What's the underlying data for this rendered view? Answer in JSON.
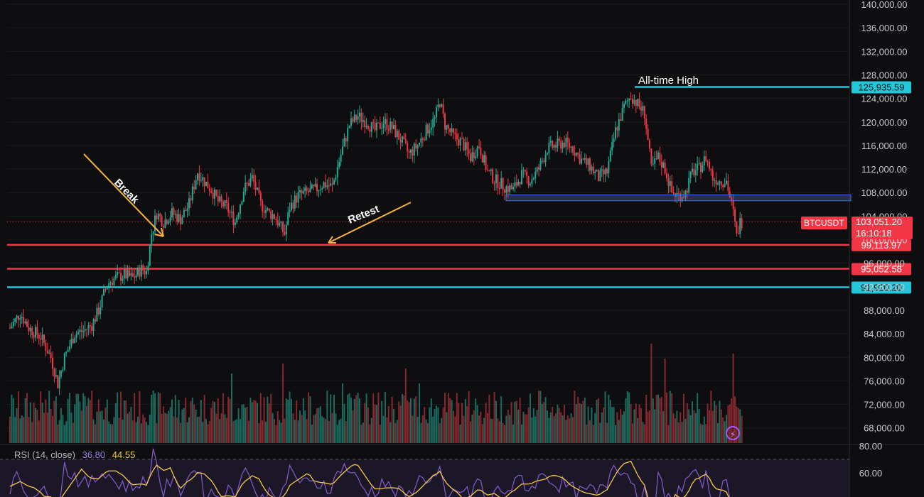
{
  "chart_data": {
    "type": "candlestick",
    "symbol": "BTCUSDT",
    "y_axis_ticks": [
      140000,
      136000,
      132000,
      128000,
      124000,
      120000,
      116000,
      112000,
      108000,
      104000,
      100000,
      96000,
      92000,
      88000,
      84000,
      80000,
      76000,
      72000,
      68000
    ],
    "y_axis_tick_labels": [
      "140,000.00",
      "136,000.00",
      "132,000.00",
      "128,000.00",
      "124,000.00",
      "120,000.00",
      "116,000.00",
      "112,000.00",
      "108,000.00",
      "104,000.00",
      "100,000.00",
      "96,000.00",
      "92,000.00",
      "88,000.00",
      "84,000.00",
      "80,000.00",
      "76,000.00",
      "72,000.00",
      "68,000.00"
    ],
    "ylim": [
      67000,
      141000
    ],
    "close_path": [
      [
        0,
        85000
      ],
      [
        6,
        87500
      ],
      [
        11,
        85000
      ],
      [
        18,
        83500
      ],
      [
        24,
        80000
      ],
      [
        28,
        75500
      ],
      [
        32,
        80000
      ],
      [
        38,
        84000
      ],
      [
        43,
        84500
      ],
      [
        48,
        85500
      ],
      [
        52,
        88000
      ],
      [
        57,
        92500
      ],
      [
        62,
        93500
      ],
      [
        67,
        94000
      ],
      [
        72,
        93500
      ],
      [
        77,
        95000
      ],
      [
        80,
        94500
      ],
      [
        83,
        101000
      ],
      [
        86,
        104500
      ],
      [
        90,
        103000
      ],
      [
        95,
        104500
      ],
      [
        100,
        103500
      ],
      [
        105,
        106000
      ],
      [
        110,
        111500
      ],
      [
        115,
        109500
      ],
      [
        118,
        108500
      ],
      [
        122,
        106500
      ],
      [
        127,
        105500
      ],
      [
        132,
        103000
      ],
      [
        137,
        108500
      ],
      [
        142,
        110500
      ],
      [
        147,
        106000
      ],
      [
        152,
        104500
      ],
      [
        155,
        104000
      ],
      [
        158,
        102500
      ],
      [
        161,
        101000
      ],
      [
        164,
        105500
      ],
      [
        169,
        107500
      ],
      [
        174,
        108000
      ],
      [
        179,
        108500
      ],
      [
        184,
        109500
      ],
      [
        189,
        109000
      ],
      [
        194,
        114500
      ],
      [
        199,
        119500
      ],
      [
        204,
        121000
      ],
      [
        209,
        120000
      ],
      [
        214,
        118500
      ],
      [
        219,
        120000
      ],
      [
        224,
        119000
      ],
      [
        229,
        117000
      ],
      [
        234,
        114500
      ],
      [
        239,
        116000
      ],
      [
        244,
        118500
      ],
      [
        249,
        120500
      ],
      [
        252,
        123500
      ],
      [
        255,
        119500
      ],
      [
        260,
        117500
      ],
      [
        265,
        116500
      ],
      [
        270,
        114000
      ],
      [
        275,
        116000
      ],
      [
        280,
        111500
      ],
      [
        285,
        110000
      ],
      [
        290,
        109000
      ],
      [
        295,
        108500
      ],
      [
        300,
        111000
      ],
      [
        305,
        110000
      ],
      [
        310,
        112000
      ],
      [
        315,
        115500
      ],
      [
        320,
        116000
      ],
      [
        325,
        116500
      ],
      [
        330,
        115500
      ],
      [
        335,
        113500
      ],
      [
        340,
        112500
      ],
      [
        345,
        110500
      ],
      [
        350,
        111500
      ],
      [
        355,
        118500
      ],
      [
        360,
        122500
      ],
      [
        364,
        124500
      ],
      [
        368,
        123000
      ],
      [
        372,
        121500
      ],
      [
        376,
        112000
      ],
      [
        380,
        114000
      ],
      [
        384,
        112000
      ],
      [
        388,
        108000
      ],
      [
        392,
        107500
      ],
      [
        396,
        108000
      ],
      [
        400,
        111500
      ],
      [
        404,
        112000
      ],
      [
        408,
        114000
      ],
      [
        412,
        110500
      ],
      [
        416,
        110000
      ],
      [
        420,
        110000
      ],
      [
        424,
        104500
      ],
      [
        426,
        100500
      ],
      [
        428,
        103000
      ]
    ],
    "annotations": {
      "all_time_high_label": "All-time High",
      "break_label": "Break",
      "retest_label": "Retest"
    },
    "levels": [
      {
        "value": 125935.59,
        "label": "125,935.59",
        "color": "#26c6da"
      },
      {
        "value": 99113.97,
        "label": "99,113.97",
        "color": "#f23645"
      },
      {
        "value": 95052.58,
        "label": "95,052.58",
        "color": "#f23645"
      },
      {
        "value": 91920.2,
        "label": "91,920.20",
        "color": "#26c6da"
      }
    ],
    "current_price": {
      "value": 103051.2,
      "label": "103,051.20",
      "countdown": "16:10:18"
    },
    "zone": {
      "from": 106600,
      "to": 107600
    },
    "volume_spikes": [
      [
        88,
        0.5
      ],
      [
        130,
        0.7
      ],
      [
        160,
        0.8
      ],
      [
        195,
        0.6
      ],
      [
        232,
        0.75
      ],
      [
        240,
        0.6
      ],
      [
        376,
        1.0
      ],
      [
        384,
        0.85
      ],
      [
        424,
        0.9
      ]
    ],
    "rsi": {
      "label": "RSI (14, close)",
      "value": "36.80",
      "ma_value": "44.55",
      "ticks": [
        80,
        60
      ],
      "tick_labels": [
        "80.00",
        "60.00"
      ]
    },
    "colors": {
      "up": "#22ab94",
      "down": "#f23645",
      "cyan": "#26c6da",
      "red_level": "#f23645",
      "arrow": "#f7b23b",
      "rsi_line": "#7e57c2",
      "rsi_ma": "#f7c84a"
    }
  }
}
